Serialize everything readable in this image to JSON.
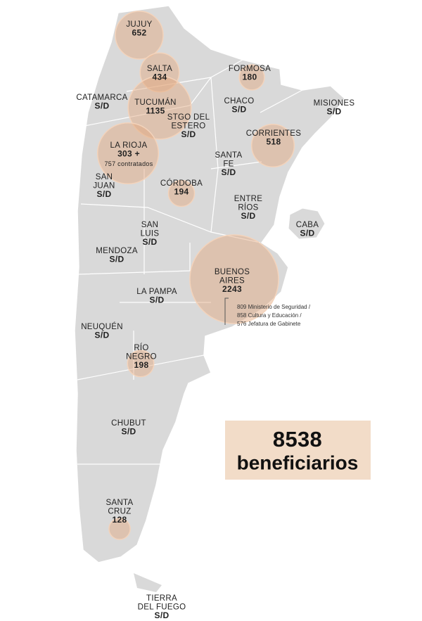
{
  "regions": [
    {
      "name_lines": [
        "JUJUY"
      ],
      "value": 652
    },
    {
      "name_lines": [
        "SALTA"
      ],
      "value": 434
    },
    {
      "name_lines": [
        "FORMOSA"
      ],
      "value": 180
    },
    {
      "name_lines": [
        "CATAMARCA"
      ],
      "value": "S/D"
    },
    {
      "name_lines": [
        "CHACO"
      ],
      "value": "S/D"
    },
    {
      "name_lines": [
        "MISIONES"
      ],
      "value": "S/D"
    },
    {
      "name_lines": [
        "TUCUMÁN"
      ],
      "value": 1135
    },
    {
      "name_lines": [
        "STGO DEL",
        "ESTERO"
      ],
      "value": "S/D"
    },
    {
      "name_lines": [
        "CORRIENTES"
      ],
      "value": 518
    },
    {
      "name_lines": [
        "LA RIOJA"
      ],
      "value": 303,
      "value_label": "303 +",
      "extra": {
        "value": 757,
        "label": "757 contratados"
      }
    },
    {
      "name_lines": [
        "SANTA",
        "FE"
      ],
      "value": "S/D"
    },
    {
      "name_lines": [
        "SAN",
        "JUAN"
      ],
      "value": "S/D"
    },
    {
      "name_lines": [
        "CÓRDOBA"
      ],
      "value": 194
    },
    {
      "name_lines": [
        "ENTRE",
        "RÍOS"
      ],
      "value": "S/D"
    },
    {
      "name_lines": [
        "CABA"
      ],
      "value": "S/D"
    },
    {
      "name_lines": [
        "SAN",
        "LUIS"
      ],
      "value": "S/D"
    },
    {
      "name_lines": [
        "MENDOZA"
      ],
      "value": "S/D"
    },
    {
      "name_lines": [
        "BUENOS",
        "AIRES"
      ],
      "value": 2243,
      "note_lines": [
        "809 Ministerio de Seguridad /",
        "858 Cultura y Educación /",
        "576 Jefatura de Gabinete"
      ]
    },
    {
      "name_lines": [
        "LA PAMPA"
      ],
      "value": "S/D"
    },
    {
      "name_lines": [
        "NEUQUÉN"
      ],
      "value": "S/D"
    },
    {
      "name_lines": [
        "RÍO",
        "NEGRO"
      ],
      "value": 198
    },
    {
      "name_lines": [
        "CHUBUT"
      ],
      "value": "S/D"
    },
    {
      "name_lines": [
        "SANTA",
        "CRUZ"
      ],
      "value": 128
    },
    {
      "name_lines": [
        "TIERRA",
        "DEL FUEGO"
      ],
      "value": "S/D"
    }
  ],
  "total": {
    "value": 8538,
    "label": "beneficiarios"
  }
}
